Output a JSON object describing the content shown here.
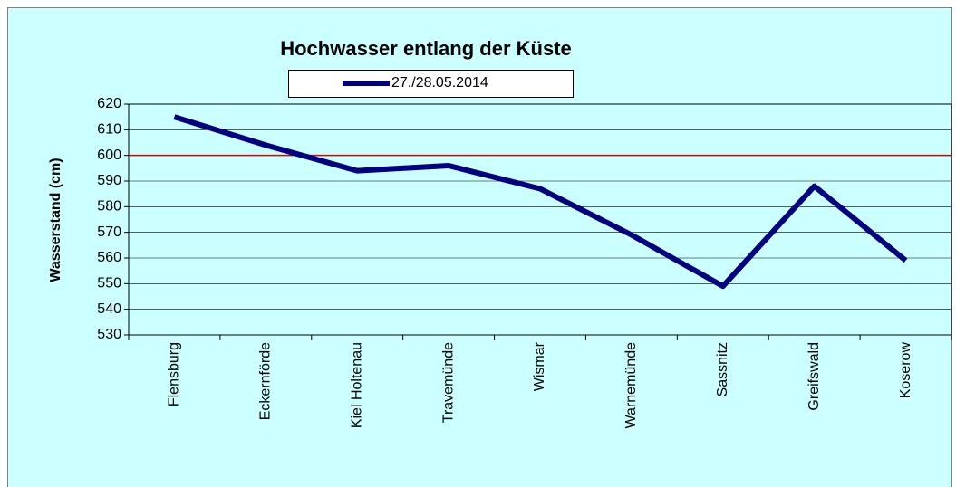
{
  "chart_data": {
    "type": "line",
    "title": "Hochwasser entlang der Küste",
    "y_label": "Wasserstand (cm)",
    "categories": [
      "Flensburg",
      "Eckernförde",
      "Kiel Holtenau",
      "Travemünde",
      "Wismar",
      "Warnemünde",
      "Sassnitz",
      "Greifswald",
      "Koserow"
    ],
    "series": [
      {
        "name": "27./28.05.2014",
        "color": "#000080",
        "values": [
          615,
          604,
          594,
          596,
          587,
          569,
          549,
          588,
          559
        ]
      }
    ],
    "reference_line": {
      "value": 600,
      "color": "#e00000"
    },
    "ylim": [
      530,
      620
    ],
    "yticks": [
      530,
      540,
      550,
      560,
      570,
      580,
      590,
      600,
      610,
      620
    ],
    "grid": true,
    "background": "#ccffff"
  }
}
